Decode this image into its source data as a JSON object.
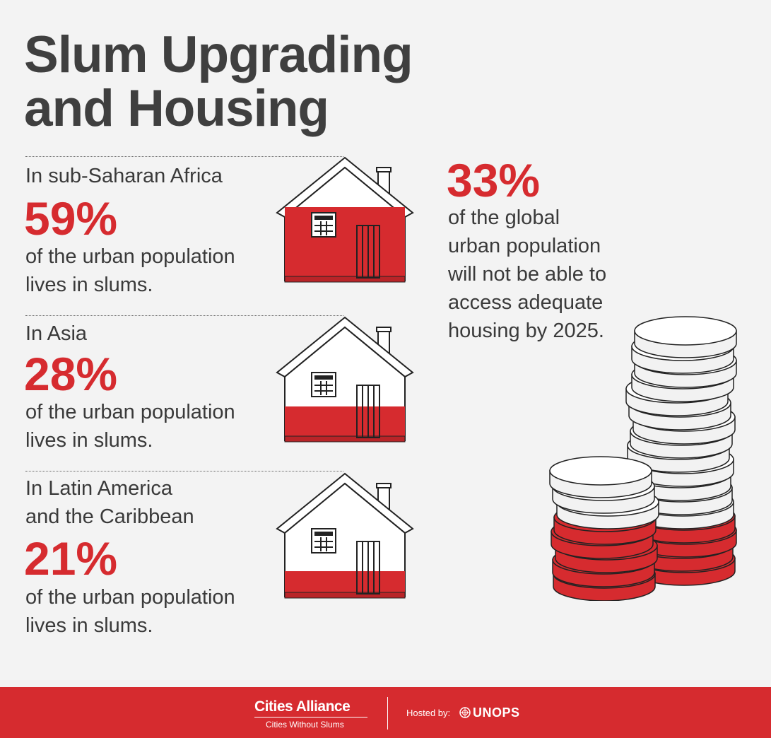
{
  "title": {
    "line1": "Slum Upgrading",
    "line2": "and Housing"
  },
  "stats": [
    {
      "region": "In sub-Saharan Africa",
      "percent": "59%",
      "percent_value": 59,
      "desc_line1": "of the urban population",
      "desc_line2": "lives in slums.",
      "house_icon": "house-icon-fill-59"
    },
    {
      "region": "In Asia",
      "percent": "28%",
      "percent_value": 28,
      "desc_line1": "of the urban population",
      "desc_line2": "lives in slums.",
      "house_icon": "house-icon-fill-28"
    },
    {
      "region_line1": "In Latin America",
      "region_line2": "and the Caribbean",
      "percent": "21%",
      "percent_value": 21,
      "desc_line1": "of the urban population",
      "desc_line2": "lives in slums.",
      "house_icon": "house-icon-fill-21"
    }
  ],
  "global": {
    "percent": "33%",
    "percent_value": 33,
    "lines": [
      "of the global",
      "urban population",
      "will not be able to",
      "access adequate",
      "housing by 2025."
    ],
    "icon": "coin-stacks-icon"
  },
  "footer": {
    "brand": "Cities Alliance",
    "tagline": "Cities Without Slums",
    "hosted_label": "Hosted by:",
    "host": "UNOPS",
    "host_icon": "un-emblem-icon"
  },
  "colors": {
    "accent": "#d62b2f",
    "text": "#3a3a3a",
    "background": "#f3f3f3"
  }
}
